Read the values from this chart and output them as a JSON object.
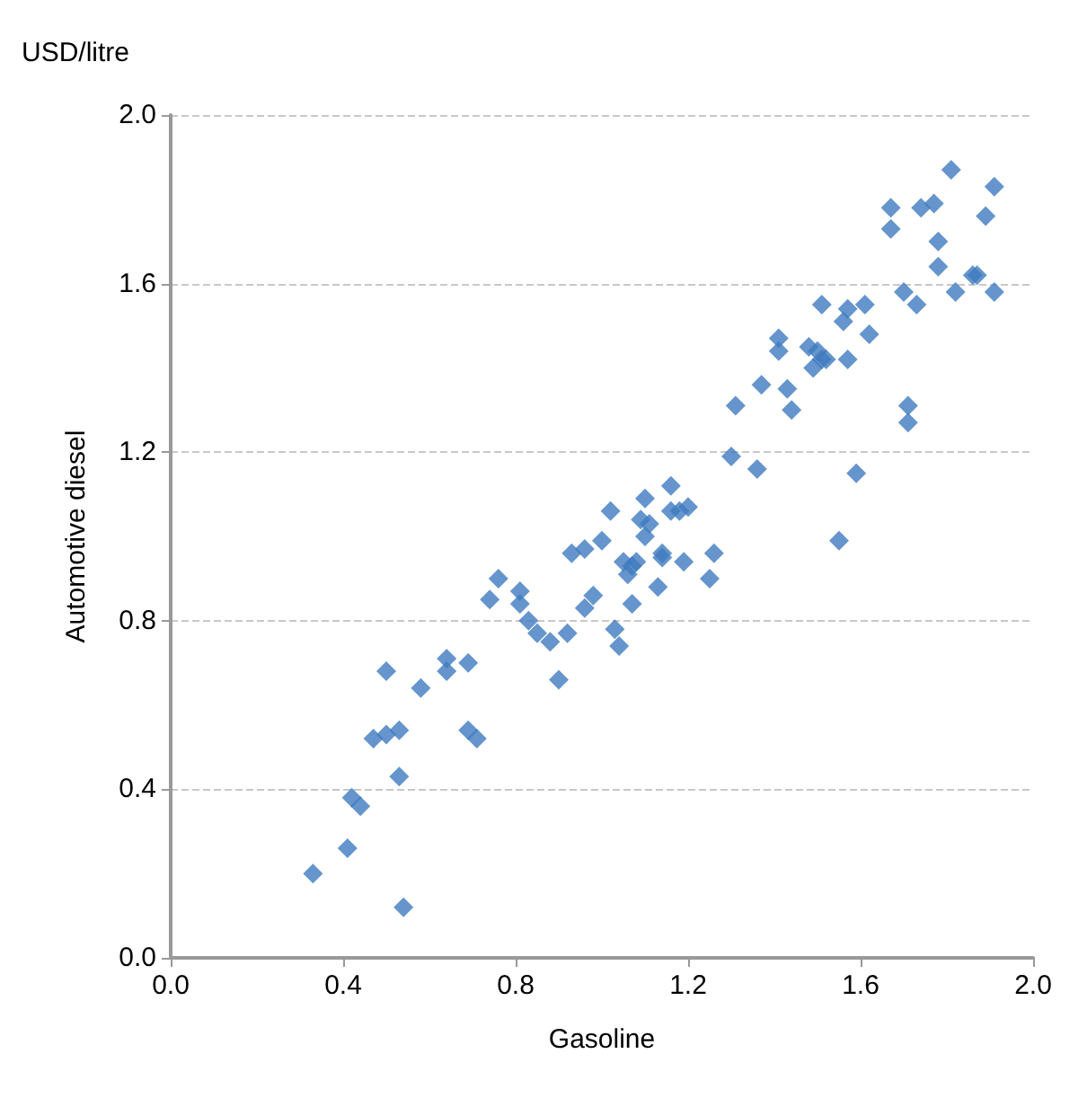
{
  "chart_data": {
    "type": "scatter",
    "xlabel": "Gasoline",
    "ylabel": "Automotive diesel",
    "annotations": [
      "USD/litre"
    ],
    "x": [
      0.33,
      0.41,
      0.42,
      0.44,
      0.47,
      0.5,
      0.5,
      0.53,
      0.53,
      0.54,
      0.58,
      0.64,
      0.64,
      0.69,
      0.69,
      0.71,
      0.74,
      0.76,
      0.81,
      0.81,
      0.83,
      0.85,
      0.88,
      0.9,
      0.92,
      0.93,
      0.96,
      0.96,
      0.98,
      1.0,
      1.02,
      1.03,
      1.04,
      1.05,
      1.06,
      1.07,
      1.07,
      1.08,
      1.09,
      1.1,
      1.1,
      1.11,
      1.13,
      1.14,
      1.14,
      1.16,
      1.16,
      1.18,
      1.19,
      1.2,
      1.25,
      1.26,
      1.3,
      1.31,
      1.36,
      1.37,
      1.41,
      1.41,
      1.43,
      1.44,
      1.48,
      1.49,
      1.5,
      1.51,
      1.52,
      1.51,
      1.55,
      1.56,
      1.57,
      1.57,
      1.59,
      1.61,
      1.62,
      1.67,
      1.67,
      1.7,
      1.71,
      1.71,
      1.73,
      1.74,
      1.77,
      1.78,
      1.78,
      1.81,
      1.82,
      1.86,
      1.87,
      1.89,
      1.91,
      1.91
    ],
    "series": [
      {
        "color": "#3f7bbf",
        "values": [
          0.2,
          0.26,
          0.38,
          0.36,
          0.52,
          0.68,
          0.53,
          0.43,
          0.54,
          0.12,
          0.64,
          0.71,
          0.68,
          0.7,
          0.54,
          0.52,
          0.85,
          0.9,
          0.87,
          0.84,
          0.8,
          0.77,
          0.75,
          0.66,
          0.77,
          0.96,
          0.97,
          0.83,
          0.86,
          0.99,
          1.06,
          0.78,
          0.74,
          0.94,
          0.91,
          0.84,
          0.93,
          0.94,
          1.04,
          1.09,
          1.0,
          1.03,
          0.88,
          0.96,
          0.95,
          1.06,
          1.12,
          1.06,
          0.94,
          1.07,
          0.9,
          0.96,
          1.19,
          1.31,
          1.16,
          1.36,
          1.44,
          1.47,
          1.35,
          1.3,
          1.45,
          1.4,
          1.44,
          1.42,
          1.42,
          1.55,
          0.99,
          1.51,
          1.54,
          1.42,
          1.15,
          1.55,
          1.48,
          1.78,
          1.73,
          1.58,
          1.31,
          1.27,
          1.55,
          1.78,
          1.79,
          1.64,
          1.7,
          1.87,
          1.58,
          1.62,
          1.62,
          1.76,
          1.83,
          1.58
        ]
      }
    ],
    "xlim": [
      0,
      2
    ],
    "ylim": [
      0,
      2
    ],
    "xticks": [
      {
        "value": 0,
        "label": "0.0"
      },
      {
        "value": 0.4,
        "label": "0.4"
      },
      {
        "value": 0.8,
        "label": "0.8"
      },
      {
        "value": 1.2,
        "label": "1.2"
      },
      {
        "value": 1.6,
        "label": "1.6"
      },
      {
        "value": 2,
        "label": "2.0"
      }
    ],
    "yticks": [
      {
        "value": 0,
        "label": "0.0"
      },
      {
        "value": 0.4,
        "label": "0.4"
      },
      {
        "value": 0.8,
        "label": "0.8"
      },
      {
        "value": 1.2,
        "label": "1.2"
      },
      {
        "value": 1.6,
        "label": "1.6"
      },
      {
        "value": 2,
        "label": "2.0"
      }
    ],
    "grid": "y",
    "marker": "diamond"
  }
}
